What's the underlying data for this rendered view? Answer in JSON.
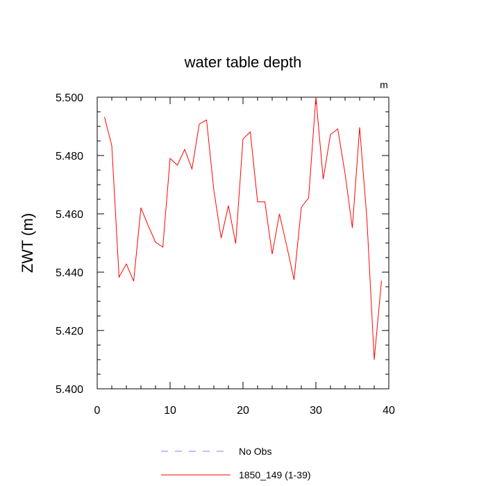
{
  "chart_data": {
    "type": "line",
    "title": "water table depth",
    "xlabel": "",
    "ylabel": "ZWT  (m)",
    "units_label": "m",
    "xlim": [
      0,
      40
    ],
    "ylim": [
      5.4,
      5.5
    ],
    "x_ticks": [
      0,
      10,
      20,
      30,
      40
    ],
    "x_tick_labels": [
      "0",
      "10",
      "20",
      "30",
      "40"
    ],
    "y_ticks": [
      5.4,
      5.42,
      5.44,
      5.46,
      5.48,
      5.5
    ],
    "y_tick_labels": [
      "5.400",
      "5.420",
      "5.440",
      "5.460",
      "5.480",
      "5.500"
    ],
    "grid": false,
    "legend_position": "bottom",
    "series": [
      {
        "name": "No Obs",
        "color": "#8080ff",
        "dash": "dashed",
        "x": [],
        "y": []
      },
      {
        "name": "1850_149 (1-39)",
        "color": "#ff0000",
        "dash": "solid",
        "x": [
          1,
          2,
          3,
          4,
          5,
          6,
          7,
          8,
          9,
          10,
          11,
          12,
          13,
          14,
          15,
          16,
          17,
          18,
          19,
          20,
          21,
          22,
          23,
          24,
          25,
          26,
          27,
          28,
          29,
          30,
          31,
          32,
          33,
          34,
          35,
          36,
          37,
          38,
          39
        ],
        "y": [
          5.4932,
          5.4834,
          5.4383,
          5.4428,
          5.4369,
          5.4621,
          5.4559,
          5.4503,
          5.4486,
          5.479,
          5.4767,
          5.4821,
          5.4754,
          5.4908,
          5.4922,
          5.4681,
          5.4517,
          5.4628,
          5.4498,
          5.4857,
          5.4881,
          5.4641,
          5.4641,
          5.4462,
          5.46,
          5.449,
          5.4374,
          5.4622,
          5.4655,
          5.5,
          5.4719,
          5.4872,
          5.4891,
          5.4738,
          5.4552,
          5.4897,
          5.4581,
          5.41,
          5.4371
        ]
      }
    ]
  }
}
